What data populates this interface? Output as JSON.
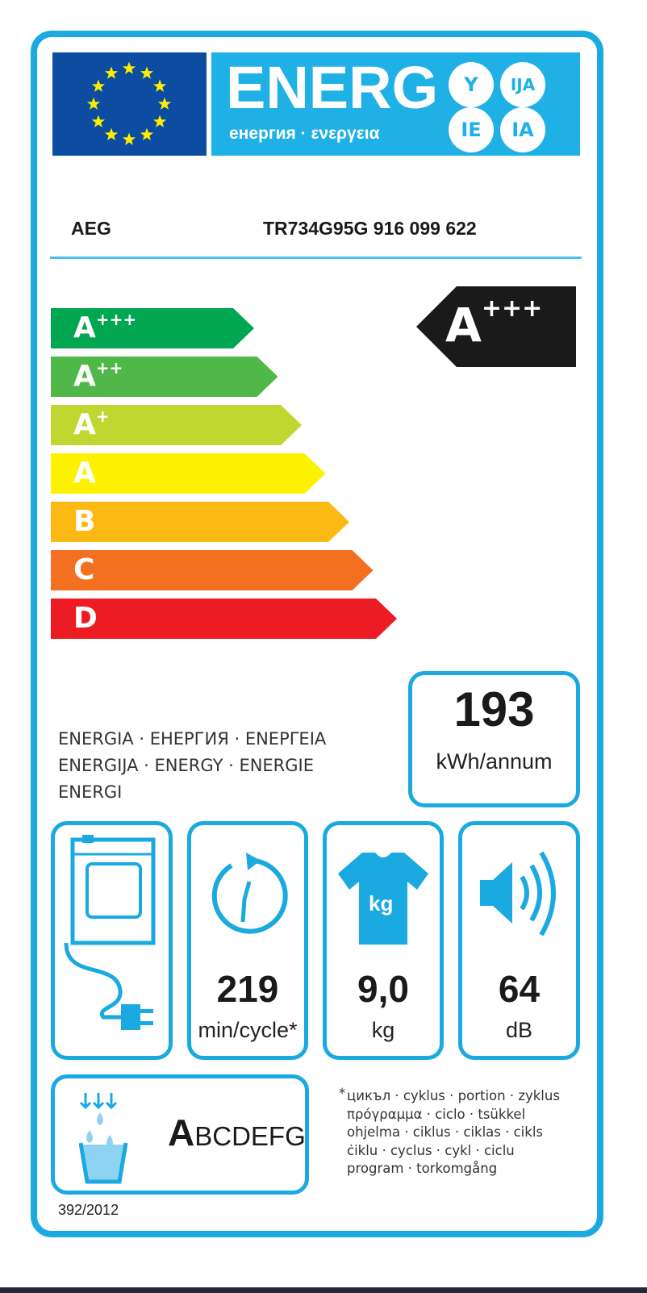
{
  "header": {
    "title": "ENERG",
    "subtitle": "енергия · ενεργεια",
    "suffixes": [
      "Y",
      "IJA",
      "IE",
      "IA"
    ],
    "flag_icon": "eu-flag-icon",
    "colors": {
      "border": "#1aa9e1",
      "band": "#1fb1e6",
      "flag": "#0c4da2",
      "stars": "#ffed00"
    }
  },
  "supplier": {
    "brand": "AEG",
    "model": "TR734G95G  916 099 622"
  },
  "scale": [
    {
      "letter": "A",
      "plus": "+++",
      "color": "#00a650"
    },
    {
      "letter": "A",
      "plus": "++",
      "color": "#50b848"
    },
    {
      "letter": "A",
      "plus": "+",
      "color": "#bfd730"
    },
    {
      "letter": "A",
      "plus": "",
      "color": "#fff200"
    },
    {
      "letter": "B",
      "plus": "",
      "color": "#fdb913"
    },
    {
      "letter": "C",
      "plus": "",
      "color": "#f37021"
    },
    {
      "letter": "D",
      "plus": "",
      "color": "#ed1c24"
    }
  ],
  "rating": {
    "letter": "A",
    "plus": "+++"
  },
  "energy": {
    "label_lines": [
      "ENERGIA · ЕНЕРГИЯ · ΕΝΕΡΓΕΙΑ",
      "ENERGIJA · ENERGY · ENERGIE",
      "ENERGI"
    ],
    "value": "193",
    "unit": "kWh/annum"
  },
  "features": [
    {
      "icon": "condenser-dryer-icon",
      "value": "",
      "unit": ""
    },
    {
      "icon": "cycle-time-icon",
      "value": "219",
      "unit": "min/cycle*"
    },
    {
      "icon": "tshirt-kg-icon",
      "value": "9,0",
      "unit": "kg",
      "icon_text": "kg"
    },
    {
      "icon": "speaker-noise-icon",
      "value": "64",
      "unit": "dB"
    }
  ],
  "condensation": {
    "icon": "water-drops-icon",
    "class_big": "A",
    "class_rest": "BCDEFG"
  },
  "footnote": {
    "lines": [
      "цикъл · cyklus · portion · zyklus",
      "πρόγραμμα · ciclo · tsükkel",
      "ohjelma · ciklus · ciklas · cikls",
      "ċiklu · cyclus · cykl · ciclu",
      "program · torkomgång"
    ],
    "marker": "*"
  },
  "regulation": "392/2012"
}
